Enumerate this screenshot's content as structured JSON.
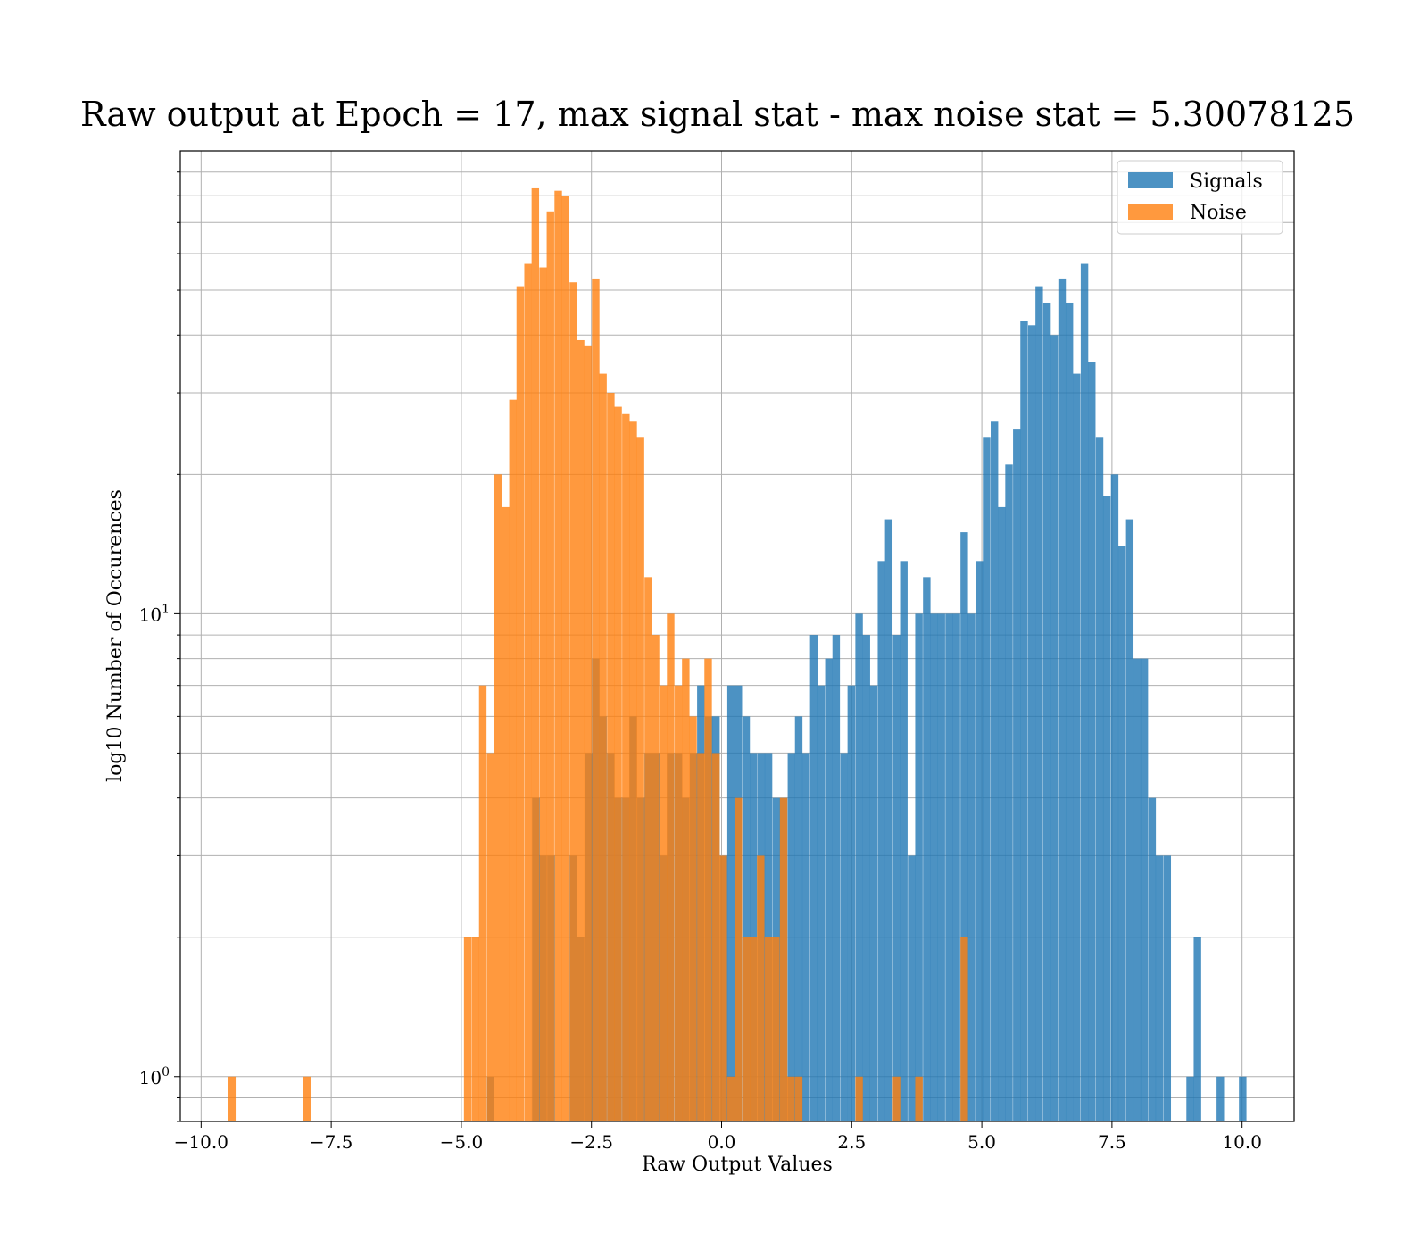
{
  "chart_data": {
    "type": "bar",
    "title": "Raw output at Epoch = 17, max signal stat - max noise stat = 5.30078125",
    "xlabel": "Raw Output Values",
    "ylabel": "log10 Number of Occurences",
    "xlim": [
      -10.4,
      11.0
    ],
    "ylim": [
      0.8,
      100
    ],
    "yscale": "log",
    "grid": true,
    "legend_position": "top-right",
    "x_ticks": [
      -10.0,
      -7.5,
      -5.0,
      -2.5,
      0.0,
      2.5,
      5.0,
      7.5,
      10.0
    ],
    "x_tick_labels": [
      "−10.0",
      "−7.5",
      "−5.0",
      "−2.5",
      "0.0",
      "2.5",
      "5.0",
      "7.5",
      "10.0"
    ],
    "y_tick_labels": [
      {
        "base": "10",
        "exp": "0",
        "value": 1
      },
      {
        "base": "10",
        "exp": "1",
        "value": 10
      }
    ],
    "series": [
      {
        "name": "Signals",
        "color": "#1f77b4",
        "opacity": 0.8,
        "bin_width": 0.1441,
        "bins": [
          [
            -4.51,
            1
          ],
          [
            -3.64,
            4
          ],
          [
            -3.5,
            3
          ],
          [
            -3.35,
            3
          ],
          [
            -2.92,
            3
          ],
          [
            -2.78,
            2
          ],
          [
            -2.63,
            5
          ],
          [
            -2.49,
            8
          ],
          [
            -2.35,
            6
          ],
          [
            -2.2,
            5
          ],
          [
            -2.06,
            4
          ],
          [
            -1.91,
            4
          ],
          [
            -1.77,
            6
          ],
          [
            -1.62,
            4
          ],
          [
            -1.48,
            5
          ],
          [
            -1.33,
            5
          ],
          [
            -1.19,
            3
          ],
          [
            -1.05,
            5
          ],
          [
            -0.9,
            5
          ],
          [
            -0.76,
            4
          ],
          [
            -0.61,
            5
          ],
          [
            -0.47,
            7
          ],
          [
            -0.32,
            6
          ],
          [
            -0.18,
            6
          ],
          [
            -0.03,
            3
          ],
          [
            0.11,
            7
          ],
          [
            0.25,
            7
          ],
          [
            0.4,
            6
          ],
          [
            0.54,
            5
          ],
          [
            0.69,
            5
          ],
          [
            0.83,
            5
          ],
          [
            0.98,
            4
          ],
          [
            1.12,
            4
          ],
          [
            1.27,
            5
          ],
          [
            1.41,
            6
          ],
          [
            1.55,
            5
          ],
          [
            1.7,
            9
          ],
          [
            1.84,
            7
          ],
          [
            1.99,
            8
          ],
          [
            2.13,
            9
          ],
          [
            2.28,
            5
          ],
          [
            2.42,
            7
          ],
          [
            2.57,
            10
          ],
          [
            2.71,
            9
          ],
          [
            2.85,
            7
          ],
          [
            3.0,
            13
          ],
          [
            3.14,
            16
          ],
          [
            3.29,
            9
          ],
          [
            3.43,
            13
          ],
          [
            3.58,
            3
          ],
          [
            3.72,
            10
          ],
          [
            3.87,
            12
          ],
          [
            4.01,
            10
          ],
          [
            4.15,
            10
          ],
          [
            4.3,
            10
          ],
          [
            4.44,
            10
          ],
          [
            4.59,
            15
          ],
          [
            4.73,
            10
          ],
          [
            4.88,
            13
          ],
          [
            5.02,
            24
          ],
          [
            5.17,
            26
          ],
          [
            5.31,
            17
          ],
          [
            5.45,
            21
          ],
          [
            5.6,
            25
          ],
          [
            5.74,
            43
          ],
          [
            5.89,
            42
          ],
          [
            6.03,
            51
          ],
          [
            6.18,
            47
          ],
          [
            6.32,
            40
          ],
          [
            6.47,
            53
          ],
          [
            6.61,
            47
          ],
          [
            6.75,
            33
          ],
          [
            6.9,
            57
          ],
          [
            7.04,
            35
          ],
          [
            7.19,
            24
          ],
          [
            7.33,
            18
          ],
          [
            7.48,
            20
          ],
          [
            7.62,
            14
          ],
          [
            7.77,
            16
          ],
          [
            7.91,
            8
          ],
          [
            8.05,
            8
          ],
          [
            8.2,
            4
          ],
          [
            8.34,
            3
          ],
          [
            8.49,
            3
          ],
          [
            8.93,
            1
          ],
          [
            9.07,
            2
          ],
          [
            9.51,
            1
          ],
          [
            9.94,
            1
          ]
        ]
      },
      {
        "name": "Noise",
        "color": "#ff7f0e",
        "opacity": 0.8,
        "bin_width": 0.1441,
        "bins": [
          [
            -9.48,
            1
          ],
          [
            -8.04,
            1
          ],
          [
            -4.95,
            2
          ],
          [
            -4.8,
            2
          ],
          [
            -4.66,
            7
          ],
          [
            -4.51,
            5
          ],
          [
            -4.37,
            20
          ],
          [
            -4.22,
            17
          ],
          [
            -4.08,
            29
          ],
          [
            -3.94,
            51
          ],
          [
            -3.79,
            57
          ],
          [
            -3.65,
            83
          ],
          [
            -3.5,
            56
          ],
          [
            -3.36,
            74
          ],
          [
            -3.21,
            82
          ],
          [
            -3.07,
            80
          ],
          [
            -2.92,
            52
          ],
          [
            -2.78,
            39
          ],
          [
            -2.64,
            38
          ],
          [
            -2.49,
            53
          ],
          [
            -2.35,
            33
          ],
          [
            -2.2,
            30
          ],
          [
            -2.06,
            28
          ],
          [
            -1.91,
            27
          ],
          [
            -1.77,
            26
          ],
          [
            -1.63,
            24
          ],
          [
            -1.48,
            12
          ],
          [
            -1.34,
            9
          ],
          [
            -1.19,
            7
          ],
          [
            -1.05,
            10
          ],
          [
            -0.9,
            7
          ],
          [
            -0.76,
            8
          ],
          [
            -0.62,
            6
          ],
          [
            -0.47,
            5
          ],
          [
            -0.33,
            8
          ],
          [
            -0.18,
            5
          ],
          [
            -0.04,
            3
          ],
          [
            0.11,
            1
          ],
          [
            0.25,
            4
          ],
          [
            0.4,
            2
          ],
          [
            0.54,
            2
          ],
          [
            0.68,
            3
          ],
          [
            0.83,
            2
          ],
          [
            0.97,
            2
          ],
          [
            1.12,
            4
          ],
          [
            1.26,
            1
          ],
          [
            1.41,
            1
          ],
          [
            2.57,
            1
          ],
          [
            3.29,
            1
          ],
          [
            3.72,
            1
          ],
          [
            4.59,
            2
          ]
        ]
      }
    ]
  }
}
